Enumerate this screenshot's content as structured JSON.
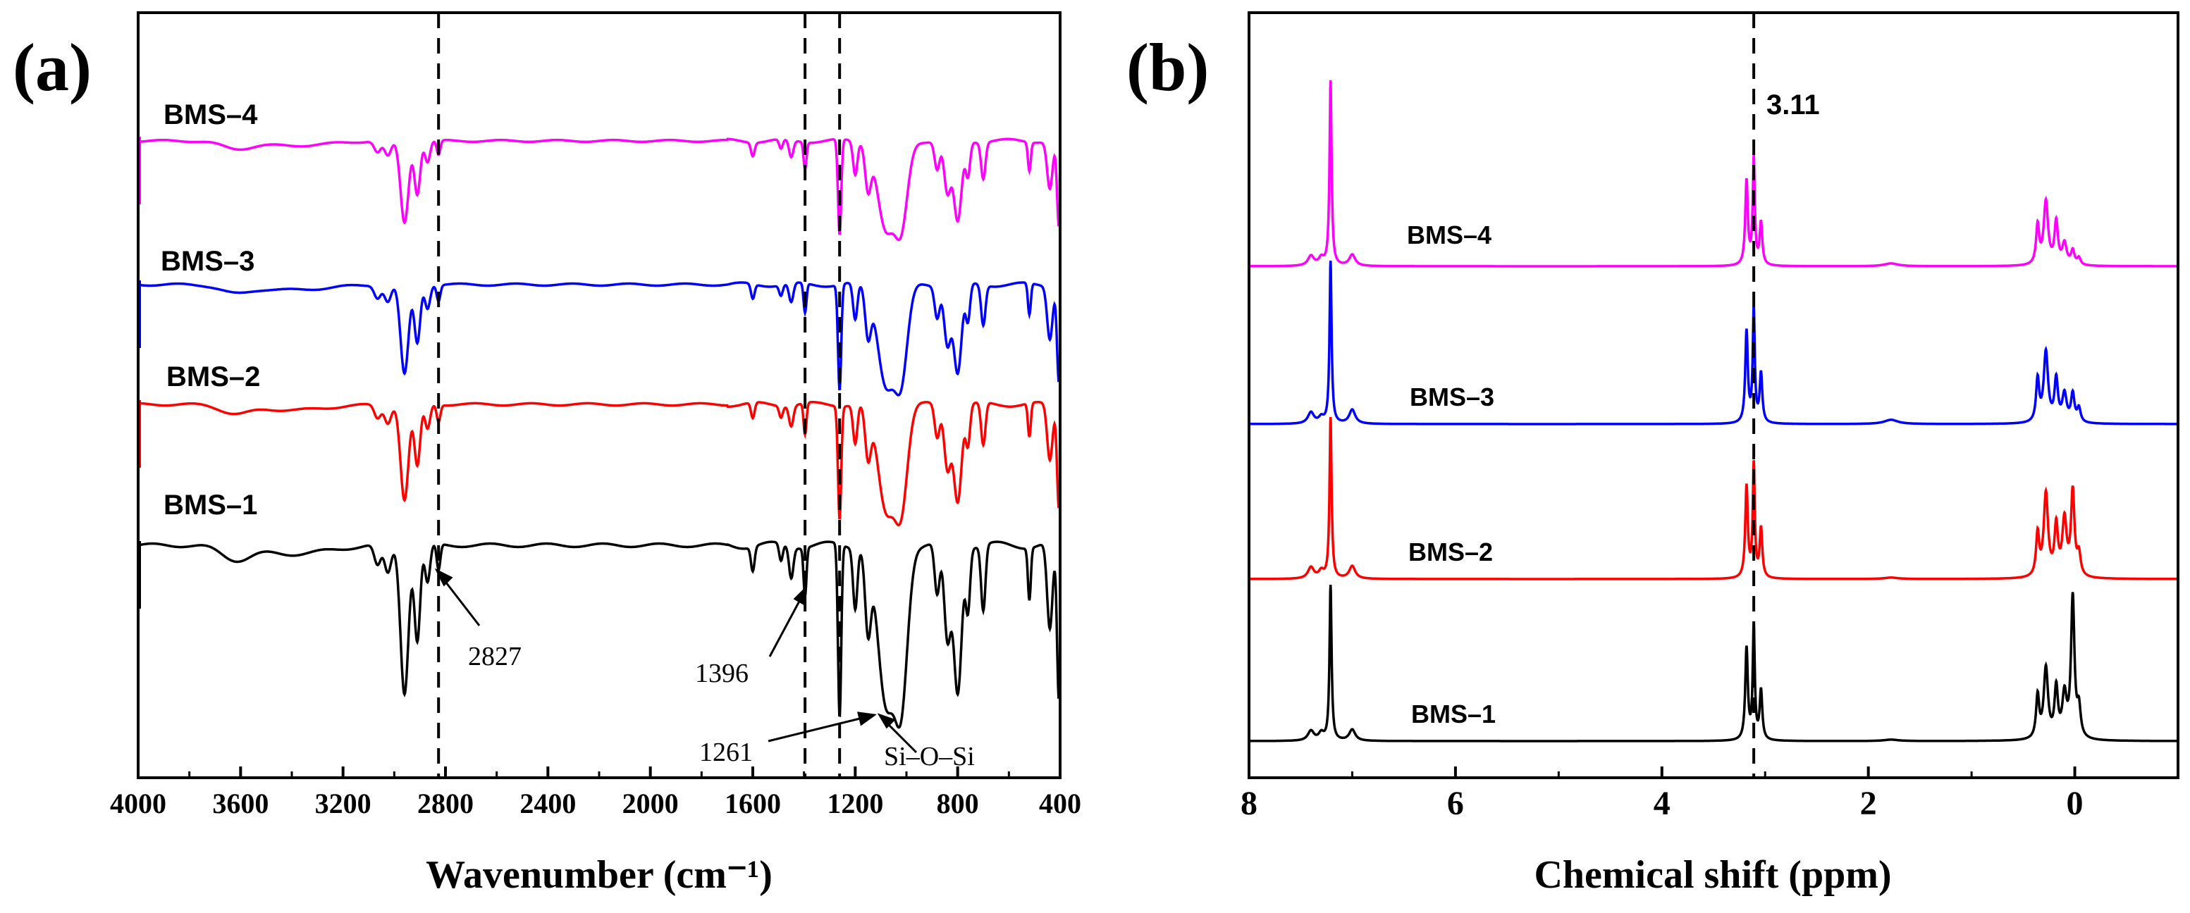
{
  "chart_data": [
    {
      "type": "line",
      "panel_label": "(a)",
      "xlabel": "Wavenumber (cm⁻¹)",
      "ylabel": "",
      "xlim": [
        4000,
        400
      ],
      "x_reversed": true,
      "x_ticks": [
        "4000",
        "3600",
        "3200",
        "2800",
        "2400",
        "2000",
        "1600",
        "1200",
        "800",
        "400"
      ],
      "reference_lines_x": [
        2827,
        1396,
        1261
      ],
      "series": [
        {
          "name": "BMS–4",
          "color": "#ff00ff"
        },
        {
          "name": "BMS–3",
          "color": "#0000ff"
        },
        {
          "name": "BMS–2",
          "color": "#ff0000"
        },
        {
          "name": "BMS–1",
          "color": "#000000"
        }
      ],
      "annotations": [
        {
          "text": "2827",
          "x": 2827
        },
        {
          "text": "1396",
          "x": 1396
        },
        {
          "text": "1261",
          "x": 1261
        },
        {
          "text": "Si–O–Si",
          "x": 1050
        }
      ]
    },
    {
      "type": "line",
      "panel_label": "(b)",
      "xlabel": "Chemical shift (ppm)",
      "ylabel": "",
      "xlim": [
        8,
        -1
      ],
      "x_reversed": true,
      "x_ticks": [
        "8",
        "6",
        "4",
        "2",
        "0"
      ],
      "reference_lines_x": [
        3.11
      ],
      "series": [
        {
          "name": "BMS–4",
          "color": "#ff00ff"
        },
        {
          "name": "BMS–3",
          "color": "#0000ff"
        },
        {
          "name": "BMS–2",
          "color": "#ff0000"
        },
        {
          "name": "BMS–1",
          "color": "#000000"
        }
      ],
      "annotations": [
        {
          "text": "3.11",
          "x": 3.11
        }
      ]
    }
  ]
}
